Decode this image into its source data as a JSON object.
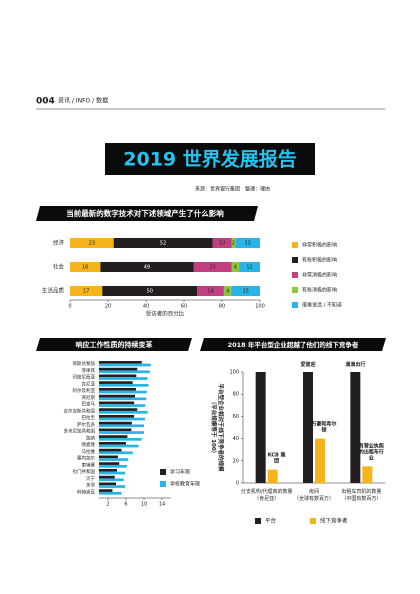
{
  "header": {
    "page_number": "004",
    "section": "资讯 / INFO / 数据"
  },
  "title": "2019 世界发展报告",
  "source": "来源：世界银行集团　整理：理由",
  "chart_data": [
    {
      "type": "bar",
      "orientation": "horizontal",
      "stacked": true,
      "title": "当前最新的数字技术对下述领域产生了什么影响",
      "categories": [
        "经济",
        "社会",
        "生活品质"
      ],
      "series": [
        {
          "name": "非常积极的影响",
          "color": "#f5b31c",
          "values": [
            23,
            16,
            17
          ]
        },
        {
          "name": "有些积极的影响",
          "color": "#231f20",
          "values": [
            52,
            49,
            50
          ]
        },
        {
          "name": "非常消极的影响",
          "color": "#c13f7f",
          "values": [
            10,
            20,
            14
          ]
        },
        {
          "name": "有些消极的影响",
          "color": "#8dc63f",
          "values": [
            2,
            4,
            4
          ]
        },
        {
          "name": "很难说清 / 不知道",
          "color": "#27b4e6",
          "values": [
            13,
            11,
            15
          ]
        }
      ],
      "xlim": [
        0,
        100
      ],
      "xticks": [
        0,
        20,
        40,
        60,
        80,
        100
      ],
      "xlabel": "受访者的百分比",
      "legend": "right"
    },
    {
      "type": "bar",
      "orientation": "horizontal",
      "stacked": false,
      "title": "响应工作性质的持续变革",
      "categories": [
        "哥斯达黎加",
        "菲律宾",
        "印度尼西亚",
        "肯尼亚",
        "阿尔及利亚",
        "突尼斯",
        "巴拿马",
        "吉尔吉斯共和国",
        "巴拉圭",
        "萨尔瓦多",
        "多米尼加共和国",
        "加纳",
        "喀麦隆",
        "马拉维",
        "塞内加尔",
        "柬埔寨",
        "也门共和国",
        "贝宁",
        "多哥",
        "科特迪瓦"
      ],
      "series": [
        {
          "name": "学习年限",
          "color": "#231f20",
          "values": [
            9.5,
            8.5,
            8.3,
            7.5,
            8.2,
            8.0,
            7.8,
            8.5,
            7.8,
            7.3,
            7.2,
            6.3,
            6.0,
            5.0,
            4.2,
            4.5,
            4.0,
            3.5,
            3.8,
            3.0
          ]
        },
        {
          "name": "学校教育年限",
          "color": "#27b4e6",
          "values": [
            11.5,
            11.3,
            10.8,
            11.0,
            10.6,
            10.5,
            10.3,
            10.8,
            10.2,
            10.0,
            10.0,
            9.5,
            8.8,
            7.5,
            6.5,
            6.2,
            5.8,
            5.5,
            5.8,
            5.0
          ]
        }
      ],
      "xlim": [
        0,
        16
      ],
      "xticks": [
        2,
        6,
        10,
        14
      ],
      "legend": "lower right"
    },
    {
      "type": "bar",
      "orientation": "vertical",
      "stacked": false,
      "title": "2018 年平台型企业超越了他们的线下竞争者",
      "categories": [
        "分支机构/代理商的数量（肯尼亚）",
        "房间（全球有数百万）",
        "出租车司机的数量（中国有数百万）"
      ],
      "series": [
        {
          "name": "平台",
          "color": "#231f20",
          "values": [
            100,
            100,
            100
          ],
          "point_labels": [
            null,
            "爱彼迎",
            "滴滴出行"
          ]
        },
        {
          "name": "线下竞争者",
          "color": "#f5b31c",
          "values": [
            12,
            40,
            15
          ],
          "point_labels": [
            "KCB 集团",
            "万豪和希尔顿",
            "有营业执照的出租车行业"
          ]
        }
      ],
      "ylim": [
        0,
        100
      ],
      "yticks": [
        0,
        20,
        40,
        60,
        80,
        100
      ],
      "ylabel": "平台型企业相对于线下竞争者的规模（平台规模等于 100）",
      "legend": "bottom",
      "grid": false
    }
  ]
}
